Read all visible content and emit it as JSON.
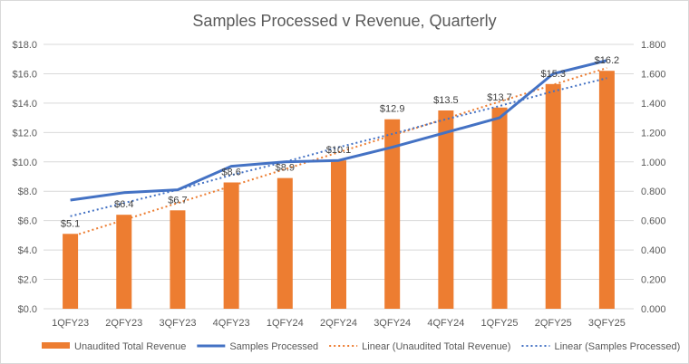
{
  "chart_data": {
    "type": "bar",
    "title": "Samples Processed v Revenue, Quarterly",
    "categories": [
      "1QFY23",
      "2QFY23",
      "3QFY23",
      "4QFY23",
      "1QFY24",
      "2QFY24",
      "3QFY24",
      "4QFY24",
      "1QFY25",
      "2QFY25",
      "3QFY25"
    ],
    "series": [
      {
        "name": "Unaudited Total Revenue",
        "type": "bar",
        "axis": "left",
        "color": "#ED7D31",
        "values": [
          5.1,
          6.4,
          6.7,
          8.6,
          8.9,
          10.1,
          12.9,
          13.5,
          13.7,
          15.3,
          16.2
        ],
        "labels": [
          "$5.1",
          "$6.4",
          "$6.7",
          "$8.6",
          "$8.9",
          "$10.1",
          "$12.9",
          "$13.5",
          "$13.7",
          "$15.3",
          "$16.2"
        ]
      },
      {
        "name": "Samples Processed",
        "type": "line",
        "axis": "right",
        "color": "#4472C4",
        "values": [
          0.74,
          0.79,
          0.81,
          0.97,
          1.0,
          1.01,
          1.1,
          1.2,
          1.3,
          1.6,
          1.69
        ]
      },
      {
        "name": "Linear (Unaudited Total Revenue)",
        "type": "trendline",
        "axis": "left",
        "color": "#ED7D31",
        "style": "dotted",
        "values": [
          4.9,
          6.05,
          7.2,
          8.35,
          9.5,
          10.65,
          11.8,
          12.95,
          14.1,
          15.25,
          16.4
        ]
      },
      {
        "name": "Linear (Samples Processed)",
        "type": "trendline",
        "axis": "right",
        "color": "#4472C4",
        "style": "dotted",
        "values": [
          0.63,
          0.72,
          0.81,
          0.91,
          1.0,
          1.1,
          1.19,
          1.29,
          1.38,
          1.48,
          1.57
        ]
      }
    ],
    "y_left": {
      "range": [
        0,
        18
      ],
      "ticks": [
        0,
        2,
        4,
        6,
        8,
        10,
        12,
        14,
        16,
        18
      ],
      "tick_labels": [
        "$0.0",
        "$2.0",
        "$4.0",
        "$6.0",
        "$8.0",
        "$10.0",
        "$12.0",
        "$14.0",
        "$16.0",
        "$18.0"
      ]
    },
    "y_right": {
      "range": [
        0,
        1.8
      ],
      "ticks": [
        0,
        0.2,
        0.4,
        0.6,
        0.8,
        1.0,
        1.2,
        1.4,
        1.6,
        1.8
      ],
      "tick_labels": [
        "0.000",
        "0.200",
        "0.400",
        "0.600",
        "0.800",
        "1.000",
        "1.200",
        "1.400",
        "1.600",
        "1.800"
      ]
    },
    "grid": true,
    "gridline_color": "#d9d9d9",
    "legend_position": "bottom"
  }
}
